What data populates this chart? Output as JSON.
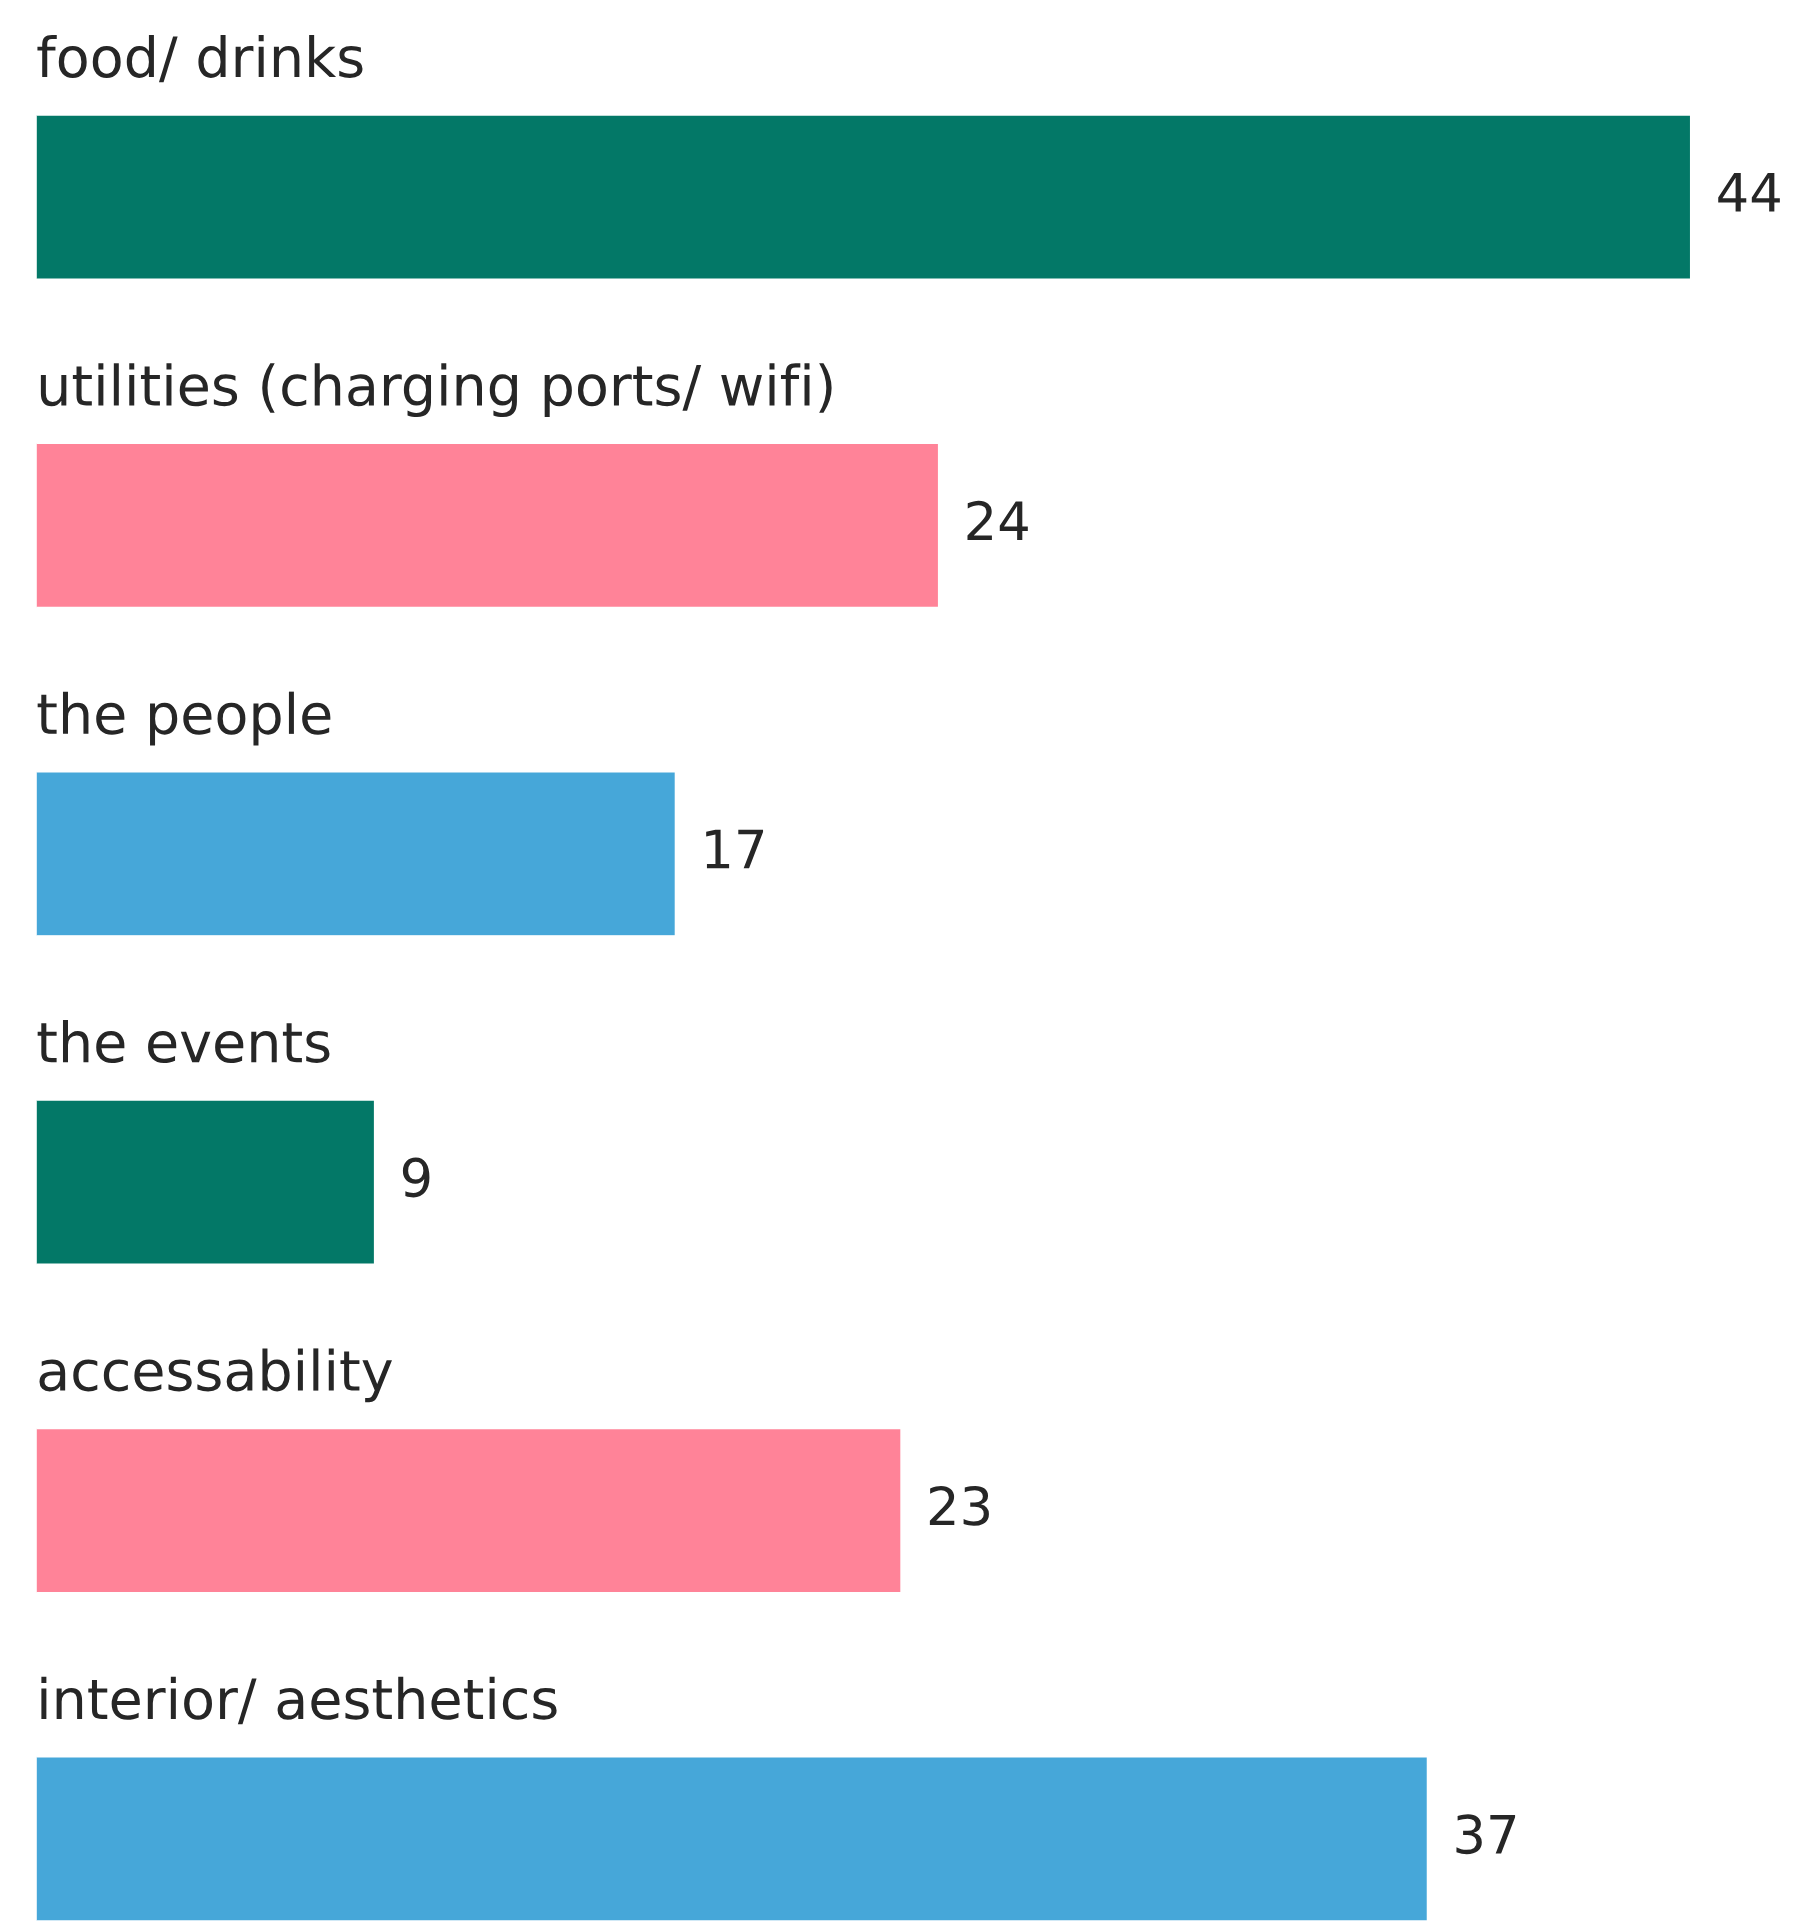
{
  "chart_data": {
    "type": "bar",
    "orientation": "horizontal",
    "categories": [
      "food/ drinks",
      "utilities (charging ports/ wifi)",
      "the people",
      "the events",
      "accessability",
      "interior/ aesthetics"
    ],
    "values": [
      44,
      24,
      17,
      9,
      23,
      37
    ],
    "colors": [
      "#037867",
      "#ff8398",
      "#46a7d9",
      "#037867",
      "#ff8398",
      "#46a7d9"
    ],
    "data_labels": true
  }
}
